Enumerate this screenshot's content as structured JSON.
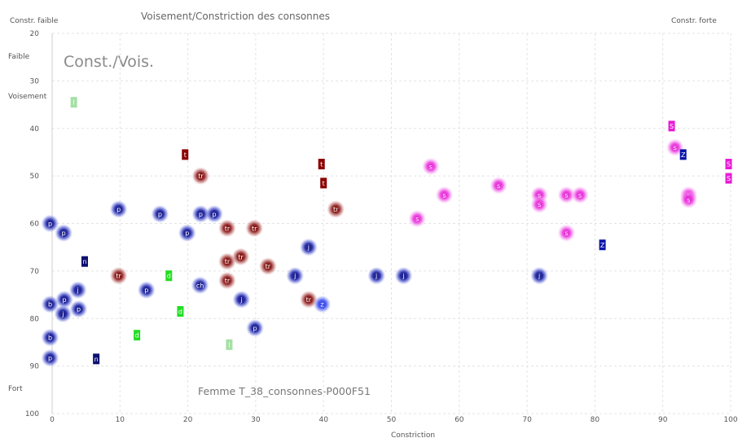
{
  "chart_data": {
    "type": "scatter",
    "title": "Voisement/Constriction des consonnes",
    "xlabel": "Constriction",
    "ylabel": "",
    "xlim": [
      0,
      100
    ],
    "ylim": [
      20,
      100
    ],
    "y_inverted": true,
    "grid": true,
    "x_ticks": [
      "0",
      "10",
      "20",
      "30",
      "40",
      "50",
      "60",
      "70",
      "80",
      "90",
      "100"
    ],
    "y_ticks": [
      "20",
      "30",
      "40",
      "50",
      "60",
      "70",
      "80",
      "90",
      "100"
    ],
    "corner_labels": {
      "top_left": "Constr. faible",
      "top_right": "Constr. forte",
      "y_top": "Faible",
      "y_middle": "Voisement",
      "y_bottom": "Fort"
    },
    "annotation": "Const./Vois.",
    "footer": "Femme T_38_consonnes-P000F51",
    "colors": {
      "p": "#1f1f9a",
      "b": "#1f1f9a",
      "ch": "#1f1f9a",
      "j": "#1f1f9a",
      "n": "#0b1070",
      "tr": "#8b1a1a",
      "t": "#8b0000",
      "s": "#e81ad6",
      "S": "#e81ad6",
      "Z": "#0a14a8",
      "z": "#2838e0",
      "d": "#22dd22",
      "l": "#a6e0a6"
    },
    "series": [
      {
        "label": "p",
        "style": "blob",
        "points": [
          [
            -0.3,
            60
          ],
          [
            1.7,
            62
          ],
          [
            9.8,
            57
          ],
          [
            15.9,
            58
          ],
          [
            19.9,
            62
          ],
          [
            21.9,
            58
          ],
          [
            23.9,
            58
          ],
          [
            13.9,
            74
          ],
          [
            3.9,
            78
          ],
          [
            1.8,
            76
          ],
          [
            29.9,
            82
          ],
          [
            -0.3,
            88.3
          ]
        ]
      },
      {
        "label": "b",
        "style": "blob",
        "points": [
          [
            -0.3,
            77
          ],
          [
            -0.3,
            84
          ]
        ]
      },
      {
        "label": "j",
        "style": "blob",
        "points": [
          [
            3.8,
            74
          ],
          [
            1.6,
            79
          ],
          [
            27.9,
            76
          ],
          [
            35.8,
            71
          ],
          [
            37.8,
            65
          ],
          [
            47.8,
            71
          ],
          [
            51.8,
            71
          ],
          [
            71.8,
            71
          ]
        ]
      },
      {
        "label": "ch",
        "style": "blob",
        "points": [
          [
            21.8,
            73
          ]
        ]
      },
      {
        "label": "tr",
        "style": "blob",
        "points": [
          [
            9.8,
            71
          ],
          [
            21.9,
            50
          ],
          [
            25.8,
            61
          ],
          [
            29.8,
            61
          ],
          [
            25.8,
            68
          ],
          [
            27.8,
            67
          ],
          [
            25.8,
            72
          ],
          [
            31.8,
            69
          ],
          [
            37.8,
            76
          ],
          [
            41.8,
            57
          ]
        ]
      },
      {
        "label": "z",
        "style": "blob",
        "points": [
          [
            39.8,
            77
          ]
        ]
      },
      {
        "label": "s",
        "style": "blob",
        "points": [
          [
            55.8,
            48
          ],
          [
            57.8,
            54
          ],
          [
            53.8,
            59
          ],
          [
            65.8,
            52
          ],
          [
            71.8,
            54
          ],
          [
            71.8,
            56
          ],
          [
            75.8,
            54
          ],
          [
            77.8,
            54
          ],
          [
            75.8,
            62
          ],
          [
            91.8,
            44
          ],
          [
            93.8,
            54
          ],
          [
            93.8,
            55
          ]
        ]
      },
      {
        "label": "t",
        "style": "box",
        "points": [
          [
            19.6,
            45.5
          ],
          [
            39.7,
            47.5
          ],
          [
            40,
            51.5
          ]
        ]
      },
      {
        "label": "n",
        "style": "box",
        "points": [
          [
            4.8,
            68
          ],
          [
            6.5,
            88.5
          ]
        ]
      },
      {
        "label": "S",
        "style": "box",
        "points": [
          [
            91.3,
            39.5
          ],
          [
            99.7,
            47.5
          ],
          [
            99.7,
            50.5
          ]
        ]
      },
      {
        "label": "Z",
        "style": "box",
        "points": [
          [
            93,
            45.5
          ],
          [
            81.1,
            64.5
          ]
        ]
      },
      {
        "label": "d",
        "style": "box",
        "points": [
          [
            17.2,
            71
          ],
          [
            18.9,
            78.5
          ],
          [
            12.5,
            83.5
          ]
        ]
      },
      {
        "label": "l",
        "style": "box",
        "points": [
          [
            3.2,
            34.5
          ],
          [
            26.1,
            85.5
          ]
        ]
      }
    ]
  }
}
